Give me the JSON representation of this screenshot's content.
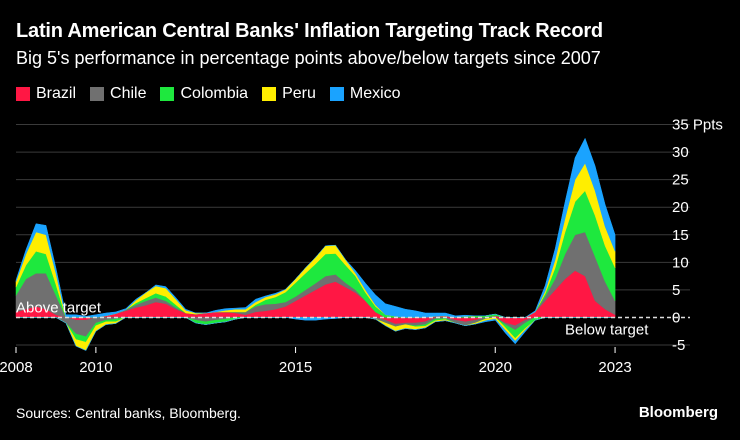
{
  "title": "Latin American Central Banks' Inflation Targeting Track Record",
  "subtitle": "Big 5's performance in percentage points above/below targets since 2007",
  "source": "Sources: Central banks, Bloomberg.",
  "brand": "Bloomberg",
  "colors": {
    "background": "#000000",
    "text": "#ffffff",
    "grid": "#3a3a3a",
    "zero_line": "#dddddd"
  },
  "chart_data": {
    "type": "area",
    "stacked": true,
    "title": "Latin American Central Banks' Inflation Targeting Track Record",
    "ylabel": "Ppts",
    "ylim": [
      -5,
      36
    ],
    "xlim": [
      2008,
      2024
    ],
    "yticks": [
      -5,
      0,
      5,
      10,
      15,
      20,
      25,
      30,
      35
    ],
    "ytick_labels": [
      "-5",
      "0",
      "5",
      "10",
      "15",
      "20",
      "25",
      "30",
      "35 Ppts"
    ],
    "xticks": [
      2008,
      2010,
      2015,
      2020,
      2023
    ],
    "xtick_labels": [
      "2008",
      "2010",
      "2015",
      "2020",
      "2023"
    ],
    "grid": true,
    "legend_position": "top-left",
    "annotations": [
      {
        "text": "Above target",
        "x": 2008,
        "y": 0,
        "position": "above"
      },
      {
        "text": "Below target",
        "x": 2021.5,
        "y": 0,
        "position": "below"
      }
    ],
    "x": [
      2008.0,
      2008.25,
      2008.5,
      2008.75,
      2009.0,
      2009.25,
      2009.5,
      2009.75,
      2010.0,
      2010.25,
      2010.5,
      2010.75,
      2011.0,
      2011.25,
      2011.5,
      2011.75,
      2012.0,
      2012.25,
      2012.5,
      2012.75,
      2013.0,
      2013.25,
      2013.5,
      2013.75,
      2014.0,
      2014.25,
      2014.5,
      2014.75,
      2015.0,
      2015.25,
      2015.5,
      2015.75,
      2016.0,
      2016.25,
      2016.5,
      2016.75,
      2017.0,
      2017.25,
      2017.5,
      2017.75,
      2018.0,
      2018.25,
      2018.5,
      2018.75,
      2019.0,
      2019.25,
      2019.5,
      2019.75,
      2020.0,
      2020.25,
      2020.5,
      2020.75,
      2021.0,
      2021.25,
      2021.5,
      2021.75,
      2022.0,
      2022.25,
      2022.5,
      2022.75,
      2023.0
    ],
    "series": [
      {
        "name": "Brazil",
        "color": "#ff1744",
        "values": [
          1.0,
          1.5,
          2.0,
          1.5,
          0.5,
          0.0,
          -0.5,
          -0.5,
          0.0,
          0.3,
          0.7,
          1.2,
          1.8,
          2.2,
          2.8,
          2.5,
          1.5,
          0.8,
          0.6,
          0.8,
          1.0,
          1.0,
          0.8,
          0.5,
          1.0,
          1.2,
          1.5,
          2.0,
          3.0,
          4.0,
          5.0,
          6.0,
          6.5,
          5.5,
          4.5,
          3.0,
          1.0,
          -0.5,
          -1.2,
          -1.0,
          -1.0,
          -0.8,
          0.2,
          0.3,
          -0.5,
          -0.8,
          -0.5,
          0.0,
          0.3,
          -1.0,
          -1.5,
          -0.5,
          1.0,
          3.0,
          5.0,
          7.0,
          8.5,
          7.5,
          3.0,
          1.5,
          0.5
        ]
      },
      {
        "name": "Chile",
        "color": "#707070",
        "values": [
          3.0,
          5.5,
          6.0,
          6.5,
          3.5,
          -1.0,
          -2.5,
          -3.0,
          -1.0,
          -0.5,
          -0.3,
          0.2,
          0.5,
          0.8,
          0.8,
          0.5,
          0.3,
          0.0,
          -0.5,
          -0.8,
          -0.5,
          -0.3,
          0.2,
          0.5,
          1.0,
          1.2,
          1.0,
          0.8,
          0.8,
          1.0,
          1.2,
          1.5,
          1.3,
          0.8,
          0.5,
          0.0,
          -0.3,
          -0.5,
          -0.5,
          -0.3,
          -0.5,
          -0.5,
          -0.3,
          -0.2,
          -0.5,
          -0.7,
          -0.5,
          -0.3,
          0.0,
          -0.3,
          -0.8,
          -0.5,
          0.0,
          0.8,
          2.0,
          4.5,
          6.5,
          8.0,
          8.0,
          5.0,
          2.5
        ]
      },
      {
        "name": "Colombia",
        "color": "#1ee83e",
        "values": [
          1.5,
          2.5,
          4.0,
          3.5,
          2.0,
          0.0,
          -1.0,
          -1.0,
          -0.5,
          -0.3,
          -0.5,
          0.0,
          0.3,
          0.5,
          0.8,
          0.8,
          0.5,
          0.0,
          -0.5,
          -0.5,
          -0.5,
          -0.5,
          -0.3,
          0.0,
          0.3,
          0.8,
          1.2,
          1.8,
          2.5,
          3.0,
          3.5,
          4.0,
          3.8,
          3.2,
          2.5,
          1.5,
          1.0,
          0.5,
          0.2,
          0.0,
          -0.2,
          -0.3,
          -0.3,
          -0.2,
          0.0,
          0.2,
          0.3,
          0.3,
          0.3,
          -0.5,
          -1.5,
          -1.0,
          -0.5,
          0.5,
          2.0,
          4.0,
          6.0,
          7.5,
          7.5,
          6.5,
          6.0
        ]
      },
      {
        "name": "Peru",
        "color": "#ffee00",
        "values": [
          1.0,
          2.0,
          3.5,
          3.5,
          2.0,
          0.0,
          -1.2,
          -1.5,
          -1.0,
          -0.5,
          -0.3,
          0.0,
          0.5,
          1.0,
          1.3,
          1.5,
          1.0,
          0.5,
          0.2,
          0.0,
          0.0,
          0.3,
          0.5,
          0.5,
          0.5,
          0.5,
          0.5,
          0.5,
          0.7,
          1.0,
          1.2,
          1.5,
          1.5,
          1.0,
          0.5,
          0.5,
          0.3,
          -0.5,
          -0.8,
          -0.7,
          -0.5,
          -0.3,
          -0.2,
          -0.2,
          0.0,
          0.0,
          -0.2,
          -0.3,
          -0.3,
          -0.5,
          -0.5,
          -0.3,
          0.0,
          0.5,
          1.5,
          2.5,
          4.0,
          5.0,
          4.5,
          3.5,
          3.0
        ]
      },
      {
        "name": "Mexico",
        "color": "#1aa3ff",
        "values": [
          0.3,
          0.8,
          1.5,
          1.7,
          1.0,
          0.5,
          0.5,
          0.2,
          0.5,
          0.5,
          0.3,
          0.2,
          0.2,
          0.0,
          0.2,
          0.3,
          0.3,
          0.2,
          0.0,
          0.0,
          0.3,
          0.3,
          0.2,
          0.3,
          0.5,
          0.2,
          0.2,
          0.0,
          -0.3,
          -0.5,
          -0.5,
          -0.3,
          -0.2,
          0.0,
          0.5,
          1.2,
          1.8,
          2.0,
          1.8,
          1.5,
          1.2,
          0.8,
          0.6,
          0.5,
          0.3,
          0.2,
          0.0,
          -0.2,
          -0.2,
          -0.5,
          -0.5,
          -0.3,
          0.2,
          1.0,
          2.0,
          3.0,
          4.0,
          4.5,
          4.5,
          4.0,
          3.0
        ]
      }
    ]
  },
  "legend": [
    {
      "name": "Brazil",
      "color": "#ff1744"
    },
    {
      "name": "Chile",
      "color": "#707070"
    },
    {
      "name": "Colombia",
      "color": "#1ee83e"
    },
    {
      "name": "Peru",
      "color": "#ffee00"
    },
    {
      "name": "Mexico",
      "color": "#1aa3ff"
    }
  ]
}
